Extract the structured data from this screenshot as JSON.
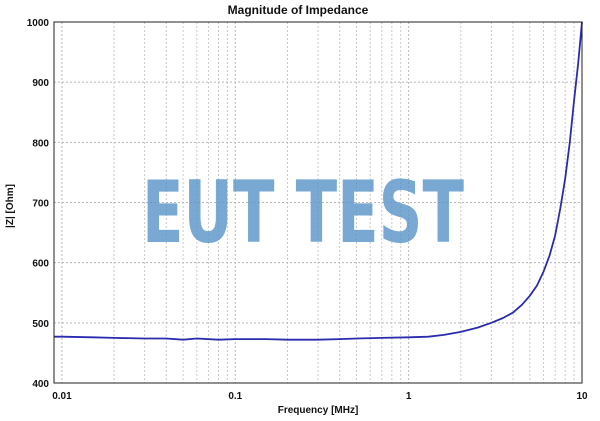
{
  "chart_data": {
    "type": "line",
    "title": "Magnitude of Impedance",
    "xlabel": "Frequency [MHz]",
    "ylabel": "|Z| [Ohm]",
    "x_scale": "log",
    "xlim": [
      0.009,
      10
    ],
    "ylim": [
      400,
      1000
    ],
    "x_ticks": [
      0.01,
      0.1,
      1,
      10
    ],
    "x_tick_labels": [
      "0.01",
      "0.1",
      "1",
      "10"
    ],
    "y_ticks": [
      400,
      500,
      600,
      700,
      800,
      900,
      1000
    ],
    "y_tick_labels": [
      "400",
      "500",
      "600",
      "700",
      "800",
      "900",
      "1000"
    ],
    "grid": true,
    "series": [
      {
        "color": "#2b2bb0",
        "x": [
          0.009,
          0.01,
          0.015,
          0.02,
          0.03,
          0.04,
          0.05,
          0.06,
          0.08,
          0.1,
          0.15,
          0.2,
          0.3,
          0.4,
          0.5,
          0.7,
          1.0,
          1.3,
          1.6,
          2.0,
          2.5,
          3.0,
          3.5,
          4.0,
          4.5,
          5.0,
          5.5,
          6.0,
          6.5,
          7.0,
          7.5,
          8.0,
          8.5,
          9.0,
          9.5,
          10.0
        ],
        "y": [
          477,
          477,
          476,
          475,
          474,
          474,
          472,
          474,
          472,
          473,
          473,
          472,
          472,
          473,
          474,
          475,
          476,
          477,
          480,
          485,
          492,
          500,
          508,
          517,
          530,
          545,
          562,
          585,
          612,
          645,
          690,
          740,
          800,
          870,
          930,
          1000
        ]
      }
    ]
  },
  "watermark": "EUT TEST"
}
